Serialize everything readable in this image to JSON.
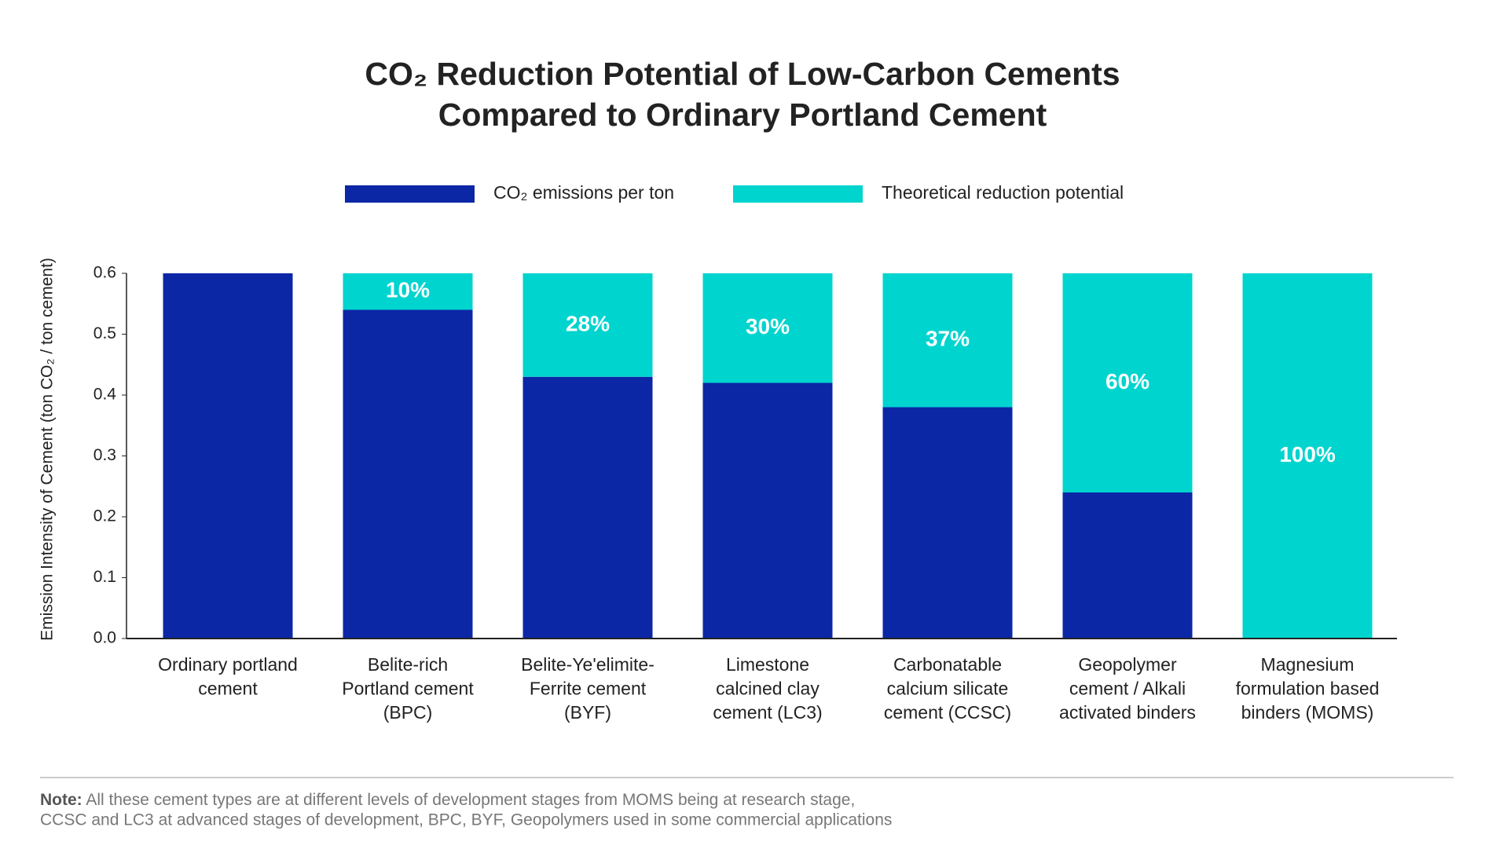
{
  "chart_data": {
    "type": "stacked_bar",
    "title_lines": [
      "CO₂ Reduction Potential of Low-Carbon Cements",
      "Compared to Ordinary Portland Cement"
    ],
    "ylabel": "Emission Intensity of Cement (ton CO₂ / ton cement)",
    "categories": [
      "Ordinary portland\ncement",
      "Belite-rich\nPortland cement\n(BPC)",
      "Belite-Ye'elimite-\nFerrite cement\n(BYF)",
      "Limestone\ncalcined clay\ncement (LC3)",
      "Carbonatable\ncalcium silicate\ncement (CCSC)",
      "Geopolymer\ncement / Alkali\nactivated binders",
      "Magnesium\nformulation based\nbinders (MOMS)"
    ],
    "series": [
      {
        "name": "CO₂ emissions per ton",
        "color": "#0b27a6",
        "values": [
          0.6,
          0.54,
          0.43,
          0.42,
          0.38,
          0.24,
          0
        ]
      },
      {
        "name": "Theoretical reduction potential",
        "color": "#00d4cf",
        "values": [
          0,
          0.06,
          0.17,
          0.18,
          0.22,
          0.36,
          0.6
        ],
        "percent_labels": [
          null,
          "10%",
          "28%",
          "30%",
          "37%",
          "60%",
          "100%"
        ]
      }
    ],
    "ylim": [
      0,
      0.6
    ],
    "yticks": [
      {
        "value": 0,
        "label": "0.0"
      },
      0.1,
      0.2,
      0.3,
      0.4,
      0.5,
      0.6
    ],
    "note_label": "Note:",
    "note_lines": [
      " All these cement types are at different levels of development stages from MOMS being at research stage,",
      "CCSC and LC3 at advanced stages of development, BPC, BYF, Geopolymers used in some commercial applications"
    ]
  }
}
